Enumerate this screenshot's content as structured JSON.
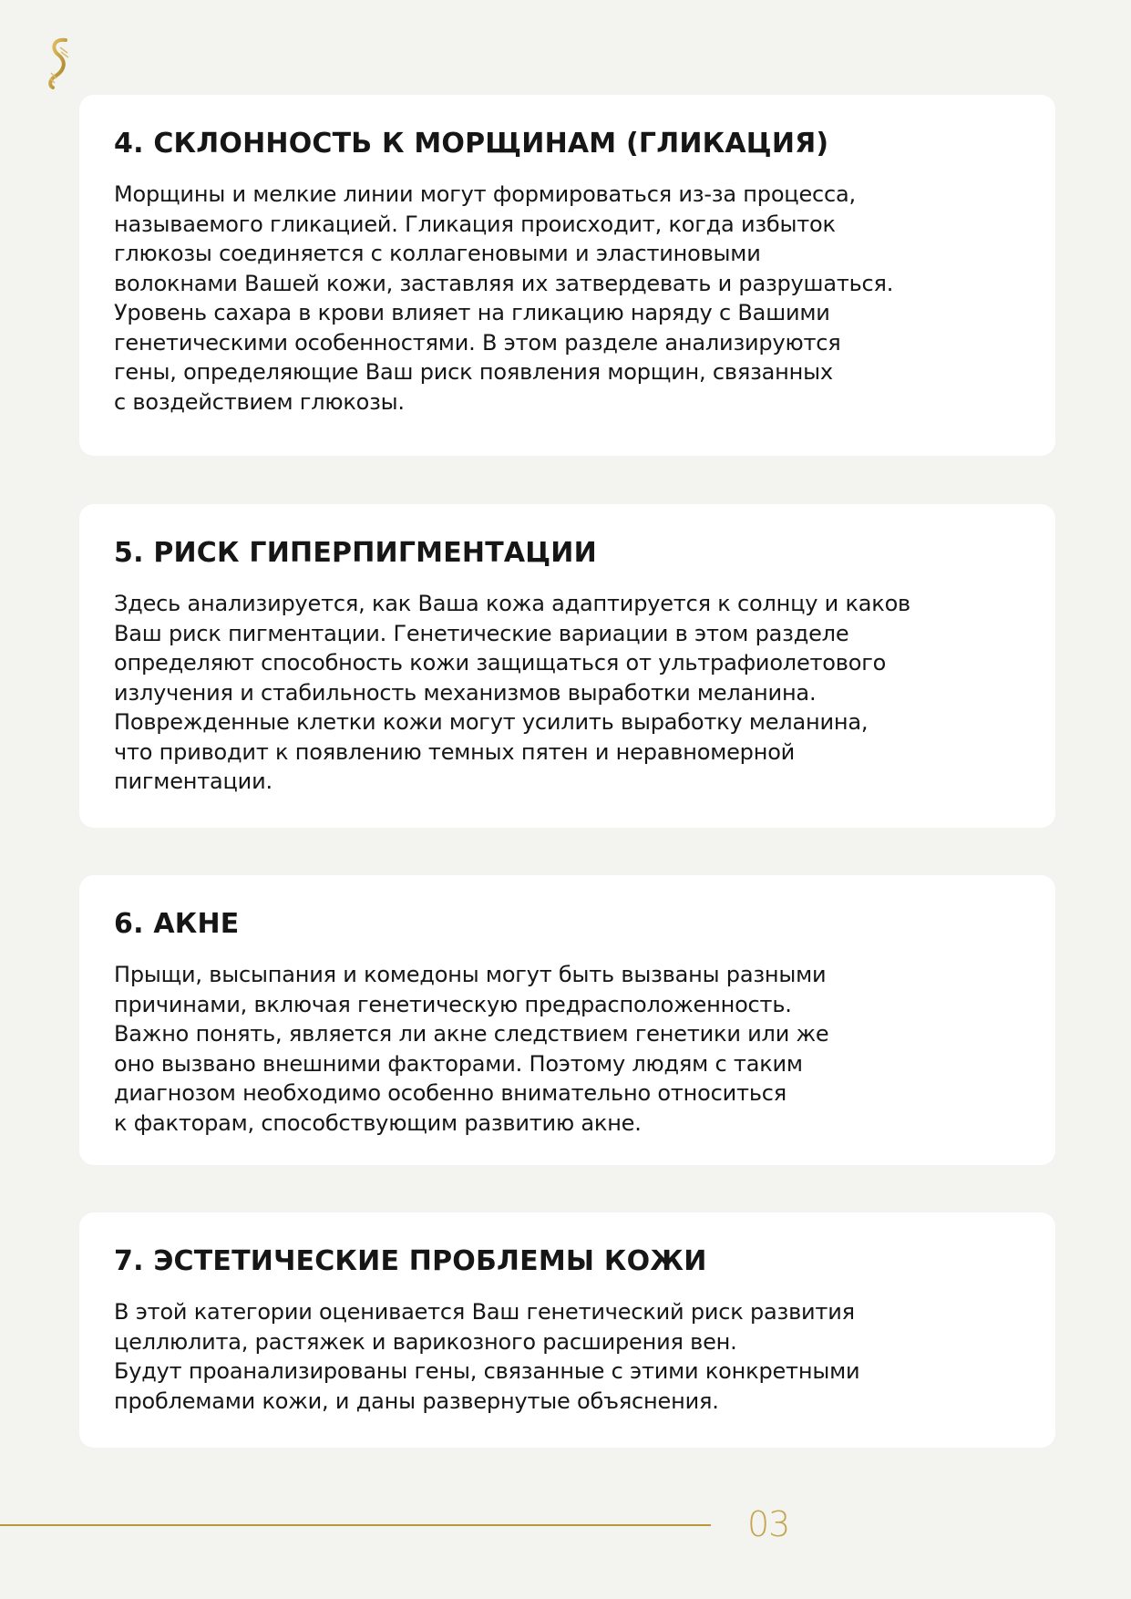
{
  "sections": [
    {
      "title": "4. СКЛОННОСТЬ К МОРЩИНАМ (ГЛИКАЦИЯ)",
      "lines": [
        "Морщины и мелкие линии могут формироваться из-за процесса,",
        "называемого гликацией. Гликация происходит, когда избыток",
        "глюкозы соединяется с коллагеновыми и эластиновыми",
        "волокнами Вашей кожи, заставляя их затвердевать и разрушаться.",
        "Уровень сахара в крови влияет на гликацию наряду с Вашими",
        "генетическими особенностями. В этом разделе анализируются",
        "гены, определяющие Ваш риск появления морщин, связанных",
        "с воздействием глюкозы."
      ]
    },
    {
      "title": "5. РИСК ГИПЕРПИГМЕНТАЦИИ",
      "lines": [
        "Здесь анализируется, как Ваша кожа адаптируется к солнцу и каков",
        "Ваш риск пигментации. Генетические вариации в этом разделе",
        "определяют способность кожи защищаться от ультрафиолетового",
        "излучения и стабильность механизмов выработки меланина.",
        "Поврежденные клетки кожи могут усилить выработку меланина,",
        "что приводит к появлению темных пятен и неравномерной",
        "пигментации."
      ]
    },
    {
      "title": "6. АКНЕ",
      "lines": [
        "Прыщи, высыпания и комедоны могут быть вызваны разными",
        "причинами, включая генетическую предрасположенность.",
        "Важно понять, является ли акне следствием генетики или же",
        "оно вызвано внешними факторами. Поэтому людям с таким",
        "диагнозом необходимо особенно внимательно относиться",
        "к факторам, способствующим развитию акне."
      ]
    },
    {
      "title": "7. ЭСТЕТИЧЕСКИЕ ПРОБЛЕМЫ КОЖИ",
      "lines": [
        "В этой категории оценивается Ваш генетический риск развития",
        "целлюлита, растяжек и варикозного расширения вен.",
        "Будут проанализированы гены, связанные с этими конкретными",
        "проблемами кожи, и даны развернутые объяснения."
      ]
    }
  ],
  "footer": {
    "page_number": "03"
  },
  "colors": {
    "accent": "#b8973a",
    "background": "#f3f3f0",
    "card": "#ffffff"
  },
  "logo": {
    "icon": "dna-helix-icon"
  }
}
